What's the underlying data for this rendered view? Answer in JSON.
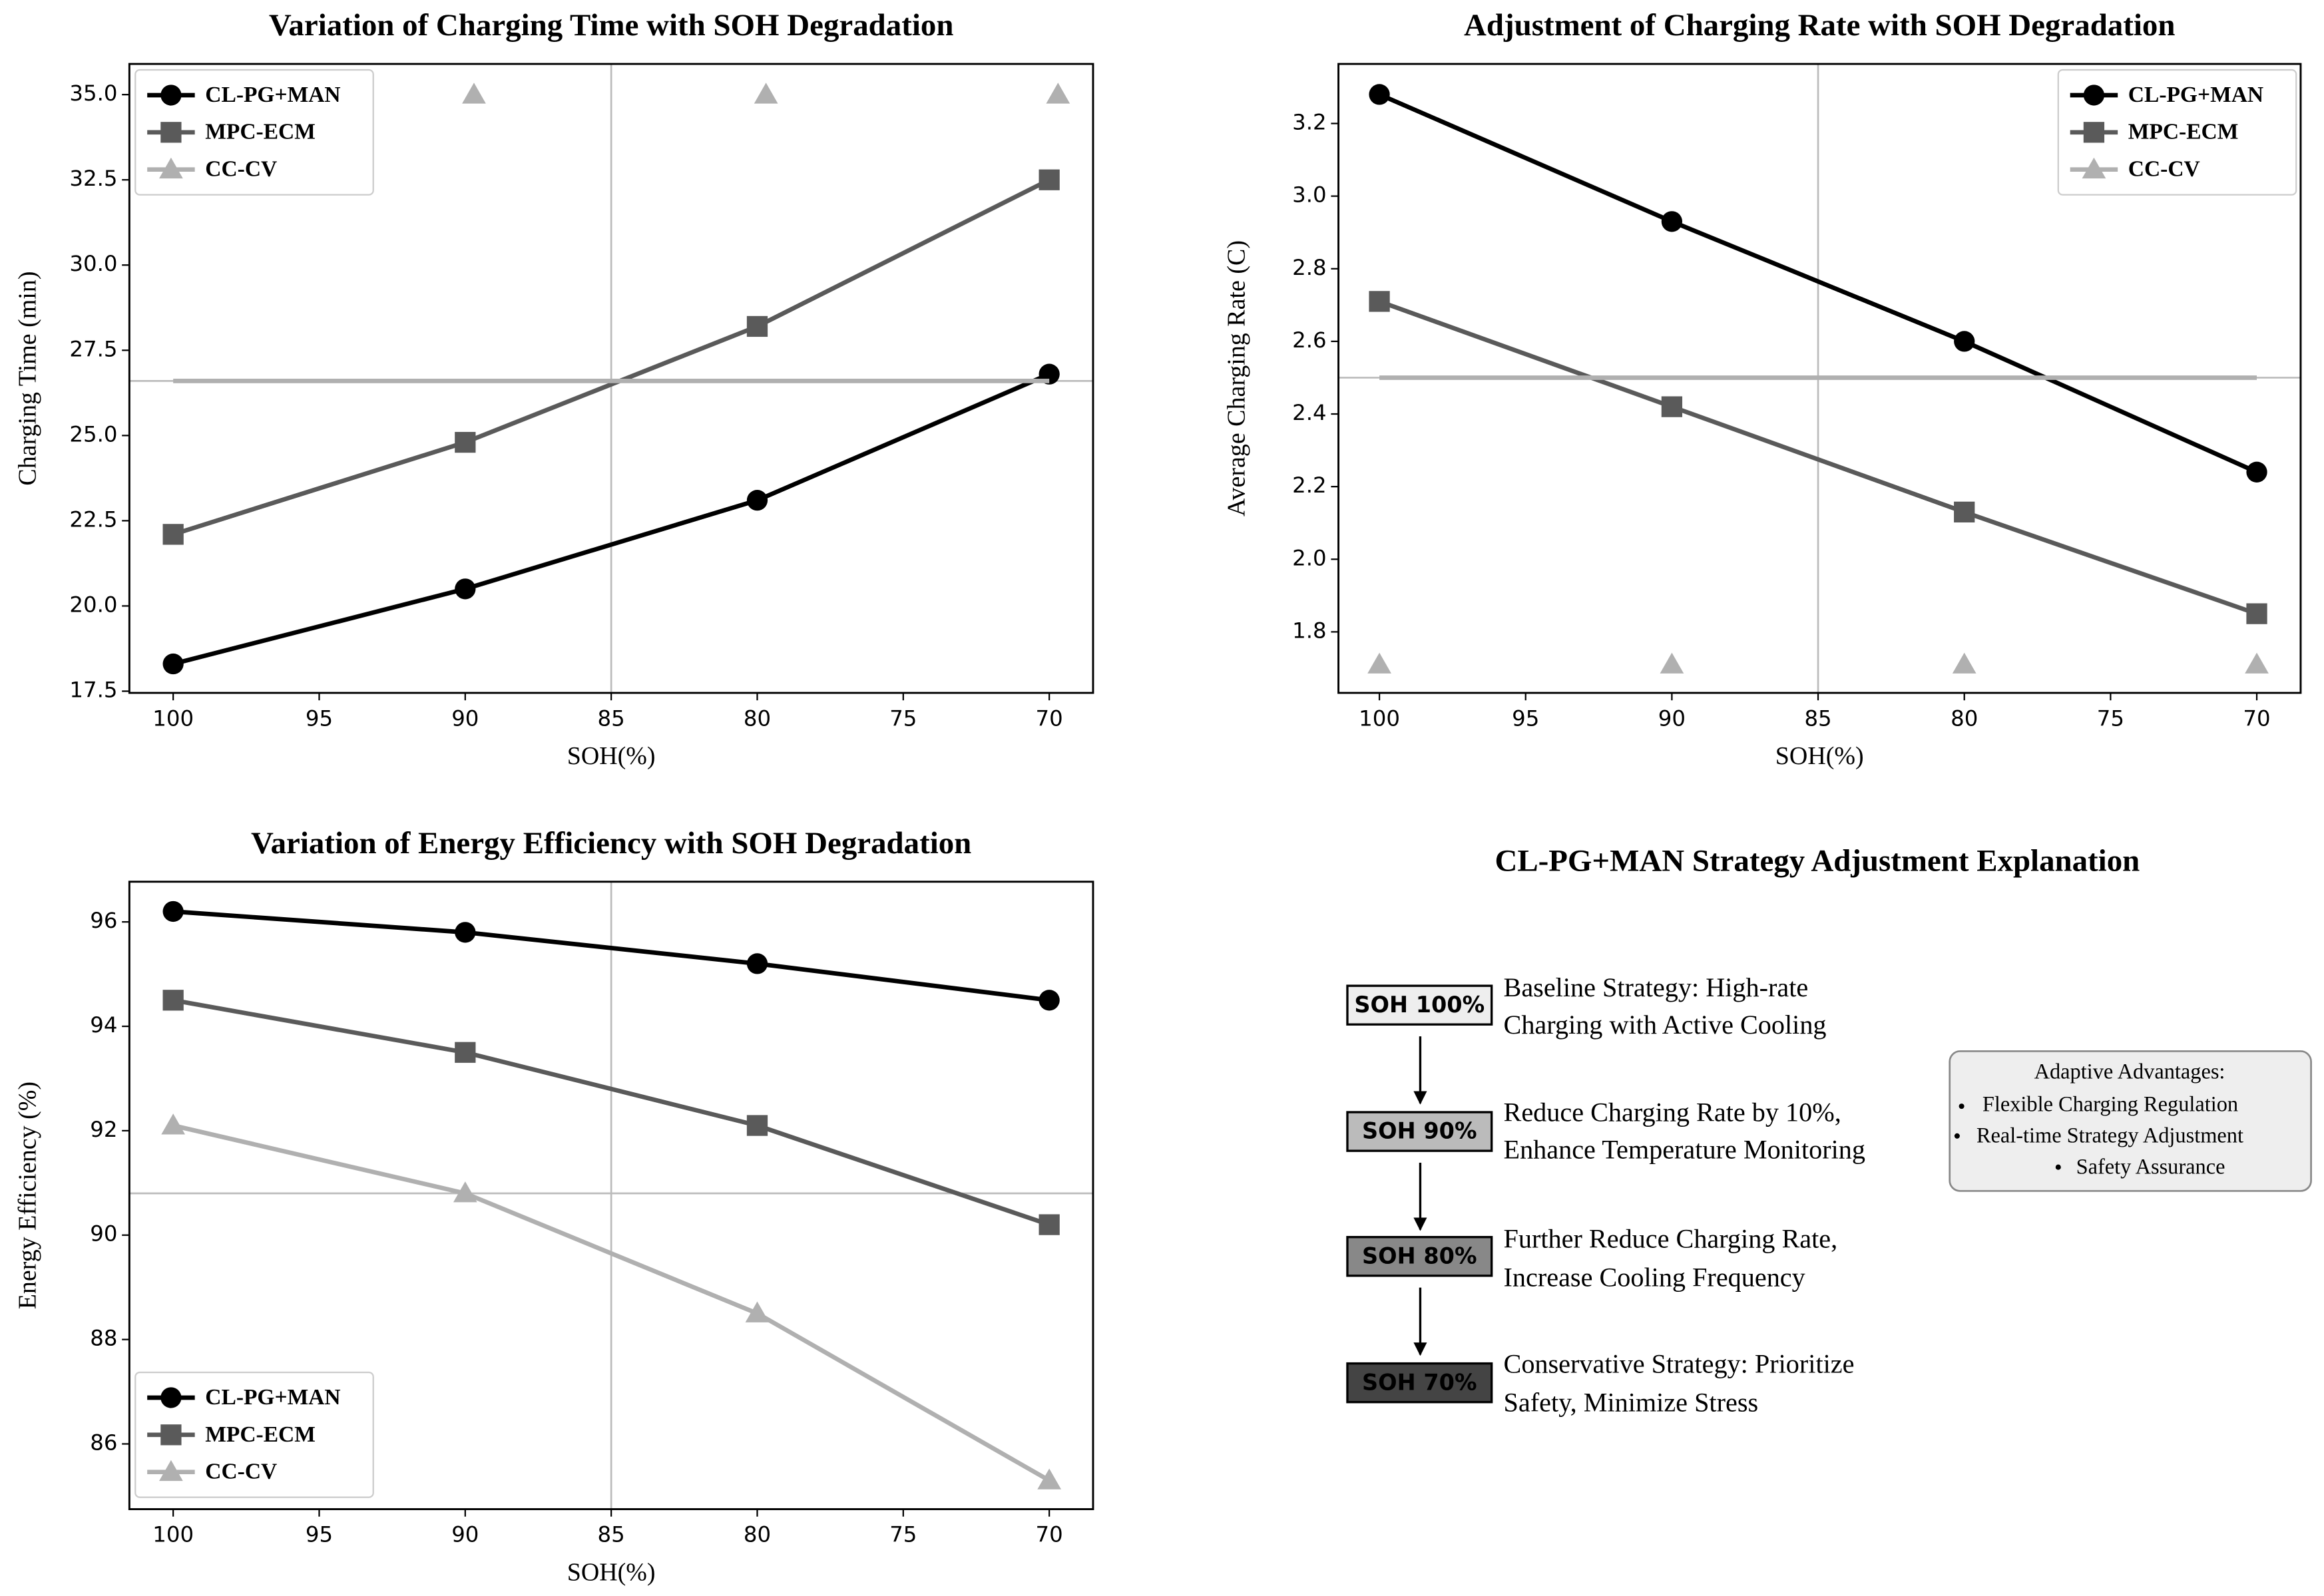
{
  "chart_data": [
    {
      "type": "line",
      "title": "Variation of Charging Time with SOH Degradation",
      "x_label": "SOH(%)",
      "y_label": "Charging Time (min)",
      "x": [
        100,
        90,
        80,
        70
      ],
      "xlim": [
        101.5,
        68.5
      ],
      "xticks": [
        100,
        95,
        90,
        85,
        80,
        75,
        70
      ],
      "ylim": [
        17.45,
        35.9
      ],
      "yticks": [
        17.5,
        {
          "value": 20,
          "label": "20.0"
        },
        22.5,
        {
          "value": 25,
          "label": "25.0"
        },
        27.5,
        {
          "value": 30,
          "label": "30.0"
        },
        32.5,
        {
          "value": 35,
          "label": "35.0"
        }
      ],
      "legend": "upper left",
      "reference_lines": {
        "x": 85,
        "y": 26.6
      },
      "series": [
        {
          "name": "CL-PG+MAN",
          "color": "#000000",
          "marker": "circle",
          "values": [
            18.3,
            20.5,
            23.1,
            26.8
          ]
        },
        {
          "name": "MPC-ECM",
          "color": "#5a5a5a",
          "marker": "square",
          "values": [
            22.1,
            24.8,
            28.2,
            32.5
          ]
        },
        {
          "name": "CC-CV",
          "color": "#b0b0b0",
          "marker": "triangle",
          "values": [
            26.6,
            26.6,
            26.6,
            26.6
          ],
          "marker_points": {
            "x": [
              89.7,
              79.7,
              69.7
            ],
            "y": [
              35,
              35,
              35
            ]
          }
        }
      ]
    },
    {
      "type": "line",
      "title": "Adjustment of Charging Rate with SOH Degradation",
      "x_label": "SOH(%)",
      "y_label": "Average Charging Rate (C)",
      "x": [
        100,
        90,
        80,
        70
      ],
      "xlim": [
        101.4,
        68.5
      ],
      "xticks": [
        100,
        95,
        90,
        85,
        80,
        75,
        70
      ],
      "ylim": [
        1.632,
        3.364
      ],
      "yticks": [
        1.8,
        {
          "value": 2,
          "label": "2.0"
        },
        2.2,
        2.4,
        2.6,
        2.8,
        {
          "value": 3,
          "label": "3.0"
        },
        3.2
      ],
      "legend": "upper right",
      "reference_lines": {
        "x": 85,
        "y": 2.5
      },
      "series": [
        {
          "name": "CL-PG+MAN",
          "color": "#000000",
          "marker": "circle",
          "values": [
            3.28,
            2.93,
            2.6,
            2.24
          ]
        },
        {
          "name": "MPC-ECM",
          "color": "#5a5a5a",
          "marker": "square",
          "values": [
            2.71,
            2.42,
            2.13,
            1.85
          ]
        },
        {
          "name": "CC-CV",
          "color": "#b0b0b0",
          "marker": "triangle",
          "values": [
            2.5,
            2.5,
            2.5,
            2.5
          ],
          "marker_points": {
            "x": [
              100,
              90,
              80,
              70
            ],
            "y": [
              1.71,
              1.71,
              1.71,
              1.71
            ]
          }
        }
      ]
    },
    {
      "type": "line",
      "title": "Variation of Energy Efficiency with SOH Degradation",
      "x_label": "SOH(%)",
      "y_label": "Energy Efficiency (%)",
      "x": [
        100,
        90,
        80,
        70
      ],
      "xlim": [
        101.5,
        68.5
      ],
      "xticks": [
        100,
        95,
        90,
        85,
        80,
        75,
        70
      ],
      "ylim": [
        84.75,
        96.77
      ],
      "yticks": [
        86,
        88,
        90,
        92,
        94,
        96
      ],
      "legend": "lower left",
      "reference_lines": {
        "x": 85,
        "y": 90.8
      },
      "series": [
        {
          "name": "CL-PG+MAN",
          "color": "#000000",
          "marker": "circle",
          "values": [
            96.2,
            95.8,
            95.2,
            94.5
          ]
        },
        {
          "name": "MPC-ECM",
          "color": "#5a5a5a",
          "marker": "square",
          "values": [
            94.5,
            93.5,
            92.1,
            90.2
          ]
        },
        {
          "name": "CC-CV",
          "color": "#b0b0b0",
          "marker": "triangle",
          "values": [
            92.1,
            90.8,
            88.5,
            85.3
          ]
        }
      ]
    }
  ],
  "explanation": {
    "title": "CL-PG+MAN Strategy Adjustment Explanation",
    "steps": [
      {
        "label": "SOH 100%",
        "text": [
          "Baseline Strategy: High-rate",
          "Charging with Active Cooling"
        ]
      },
      {
        "label": "SOH 90%",
        "text": [
          "Reduce Charging Rate by 10%,",
          "Enhance Temperature Monitoring"
        ]
      },
      {
        "label": "SOH 80%",
        "text": [
          "Further Reduce Charging Rate,",
          "Increase Cooling Frequency"
        ]
      },
      {
        "label": "SOH 70%",
        "text": [
          "Conservative Strategy: Prioritize",
          "Safety, Minimize Stress"
        ]
      }
    ],
    "advantages": {
      "title": "Adaptive Advantages:",
      "items": [
        "Flexible Charging Regulation",
        "Real-time Strategy Adjustment",
        "Safety Assurance"
      ]
    }
  }
}
